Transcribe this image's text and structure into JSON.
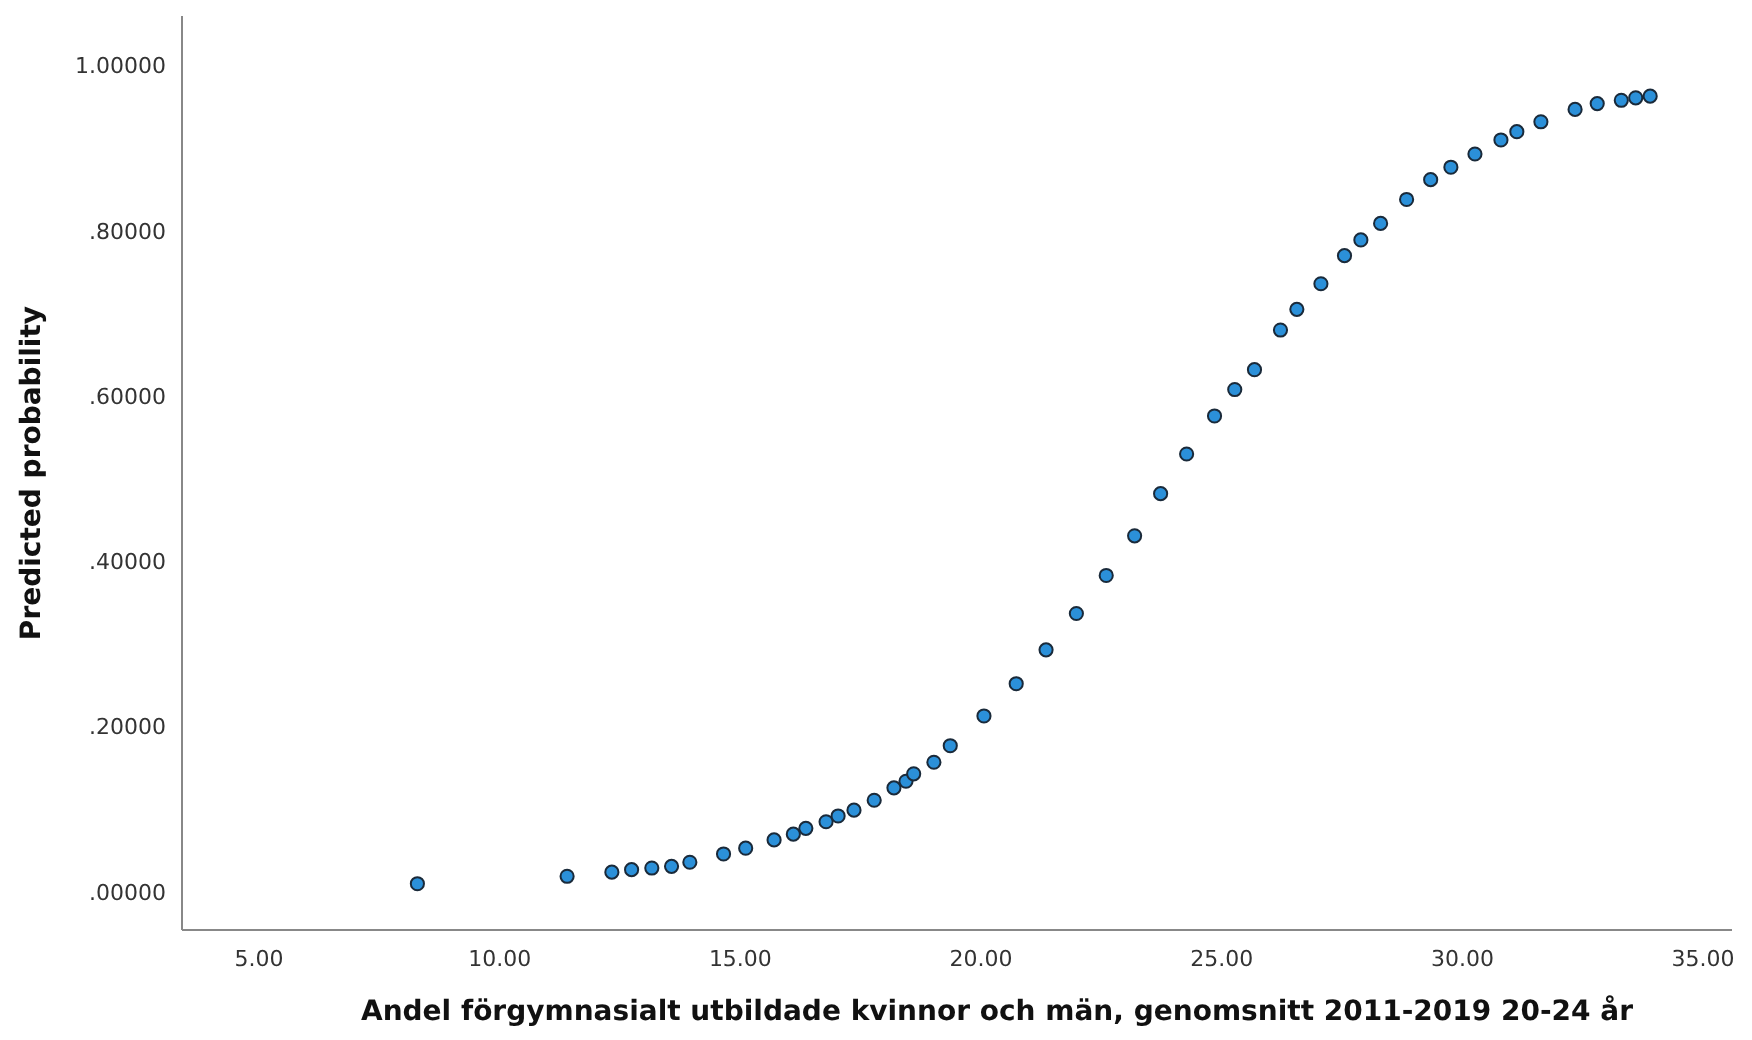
{
  "chart_data": {
    "type": "scatter",
    "xlabel": "Andel förgymnasialt utbildade kvinnor och män, genomsnitt 2011-2019 20-24 år",
    "ylabel": "Predicted probability",
    "marker": "circle",
    "grid": false,
    "xlim": [
      3.4,
      35.6
    ],
    "ylim": [
      -0.046,
      1.06
    ],
    "xticks": [
      {
        "value": 5,
        "label": "5.00"
      },
      {
        "value": 10,
        "label": "10.00"
      },
      {
        "value": 15,
        "label": "15.00"
      },
      {
        "value": 20,
        "label": "20.00"
      },
      {
        "value": 25,
        "label": "25.00"
      },
      {
        "value": 30,
        "label": "30.00"
      },
      {
        "value": 35,
        "label": "35.00"
      }
    ],
    "yticks": [
      {
        "value": 0,
        "label": ".00000"
      },
      {
        "value": 0.2,
        "label": ".20000"
      },
      {
        "value": 0.4,
        "label": ".40000"
      },
      {
        "value": 0.6,
        "label": ".60000"
      },
      {
        "value": 0.8,
        "label": ".80000"
      },
      {
        "value": 1,
        "label": "1.00000"
      }
    ],
    "series": [
      {
        "color": "#2b90d9",
        "x": [
          8.29,
          11.4,
          12.33,
          12.74,
          13.16,
          13.57,
          13.95,
          14.65,
          15.11,
          15.7,
          16.1,
          16.36,
          16.78,
          17.03,
          17.36,
          17.78,
          18.19,
          18.44,
          18.6,
          19.02,
          19.36,
          20.06,
          20.73,
          21.35,
          21.98,
          22.6,
          23.19,
          23.73,
          24.27,
          24.85,
          25.27,
          25.68,
          26.22,
          26.56,
          27.06,
          27.55,
          27.89,
          28.3,
          28.84,
          29.34,
          29.76,
          30.26,
          30.8,
          31.13,
          31.63,
          32.34,
          32.8,
          33.3,
          33.6,
          33.9
        ],
        "values": [
          0.01,
          0.019,
          0.024,
          0.027,
          0.029,
          0.031,
          0.036,
          0.046,
          0.053,
          0.063,
          0.07,
          0.077,
          0.085,
          0.092,
          0.099,
          0.111,
          0.126,
          0.134,
          0.143,
          0.157,
          0.177,
          0.213,
          0.252,
          0.293,
          0.337,
          0.383,
          0.431,
          0.482,
          0.53,
          0.576,
          0.608,
          0.632,
          0.68,
          0.705,
          0.736,
          0.77,
          0.789,
          0.809,
          0.838,
          0.862,
          0.877,
          0.893,
          0.91,
          0.92,
          0.932,
          0.947,
          0.954,
          0.958,
          0.961,
          0.963
        ]
      }
    ]
  }
}
